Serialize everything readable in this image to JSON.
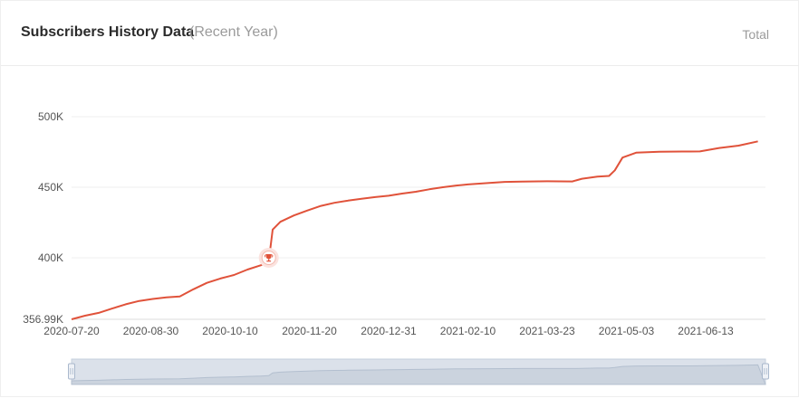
{
  "header": {
    "title": "Subscribers History Data",
    "subtitle": "(Recent Year)",
    "total_label": "Total"
  },
  "colors": {
    "line": "#e0523a",
    "grid": "#efefef",
    "axis_text": "#555555",
    "navigator_fill": "#dbe1ea",
    "navigator_handle": "#a9b8cc"
  },
  "icons": {
    "milestone": "trophy-icon"
  },
  "chart_data": {
    "type": "line",
    "title": "Subscribers History Data",
    "xlabel": "",
    "ylabel": "",
    "x_ticks": [
      "2020-07-20",
      "2020-08-30",
      "2020-10-10",
      "2020-11-20",
      "2020-12-31",
      "2021-02-10",
      "2021-03-23",
      "2021-05-03",
      "2021-06-13"
    ],
    "y_ticks": [
      "356.99K",
      "400K",
      "450K",
      "500K"
    ],
    "ylim": [
      356990,
      500000
    ],
    "grid": true,
    "milestone": {
      "date": "2020-10-30",
      "value": 400000
    },
    "series": [
      {
        "points": [
          [
            "2020-07-20",
            356990
          ],
          [
            "2020-07-27",
            359500
          ],
          [
            "2020-08-03",
            361500
          ],
          [
            "2020-08-10",
            364500
          ],
          [
            "2020-08-17",
            367500
          ],
          [
            "2020-08-24",
            369800
          ],
          [
            "2020-08-31",
            371200
          ],
          [
            "2020-09-07",
            372300
          ],
          [
            "2020-09-14",
            373000
          ],
          [
            "2020-09-21",
            378000
          ],
          [
            "2020-09-28",
            382500
          ],
          [
            "2020-10-05",
            385500
          ],
          [
            "2020-10-12",
            388000
          ],
          [
            "2020-10-19",
            391800
          ],
          [
            "2020-10-26",
            394800
          ],
          [
            "2020-10-30",
            397800
          ],
          [
            "2020-11-01",
            420000
          ],
          [
            "2020-11-05",
            425500
          ],
          [
            "2020-11-12",
            430000
          ],
          [
            "2020-11-19",
            433500
          ],
          [
            "2020-11-26",
            436800
          ],
          [
            "2020-12-03",
            439000
          ],
          [
            "2020-12-10",
            440500
          ],
          [
            "2020-12-17",
            441800
          ],
          [
            "2020-12-24",
            443000
          ],
          [
            "2020-12-31",
            444000
          ],
          [
            "2021-01-07",
            445500
          ],
          [
            "2021-01-14",
            446800
          ],
          [
            "2021-01-21",
            448500
          ],
          [
            "2021-01-28",
            450000
          ],
          [
            "2021-02-04",
            451200
          ],
          [
            "2021-02-10",
            452000
          ],
          [
            "2021-02-21",
            453000
          ],
          [
            "2021-03-01",
            453800
          ],
          [
            "2021-03-10",
            454000
          ],
          [
            "2021-03-23",
            454200
          ],
          [
            "2021-04-05",
            454100
          ],
          [
            "2021-04-10",
            456000
          ],
          [
            "2021-04-18",
            457500
          ],
          [
            "2021-04-24",
            458000
          ],
          [
            "2021-04-27",
            462000
          ],
          [
            "2021-05-01",
            471000
          ],
          [
            "2021-05-08",
            474500
          ],
          [
            "2021-05-20",
            475200
          ],
          [
            "2021-06-01",
            475300
          ],
          [
            "2021-06-10",
            475400
          ],
          [
            "2021-06-20",
            477800
          ],
          [
            "2021-06-30",
            479500
          ],
          [
            "2021-07-10",
            482500
          ]
        ]
      }
    ]
  }
}
